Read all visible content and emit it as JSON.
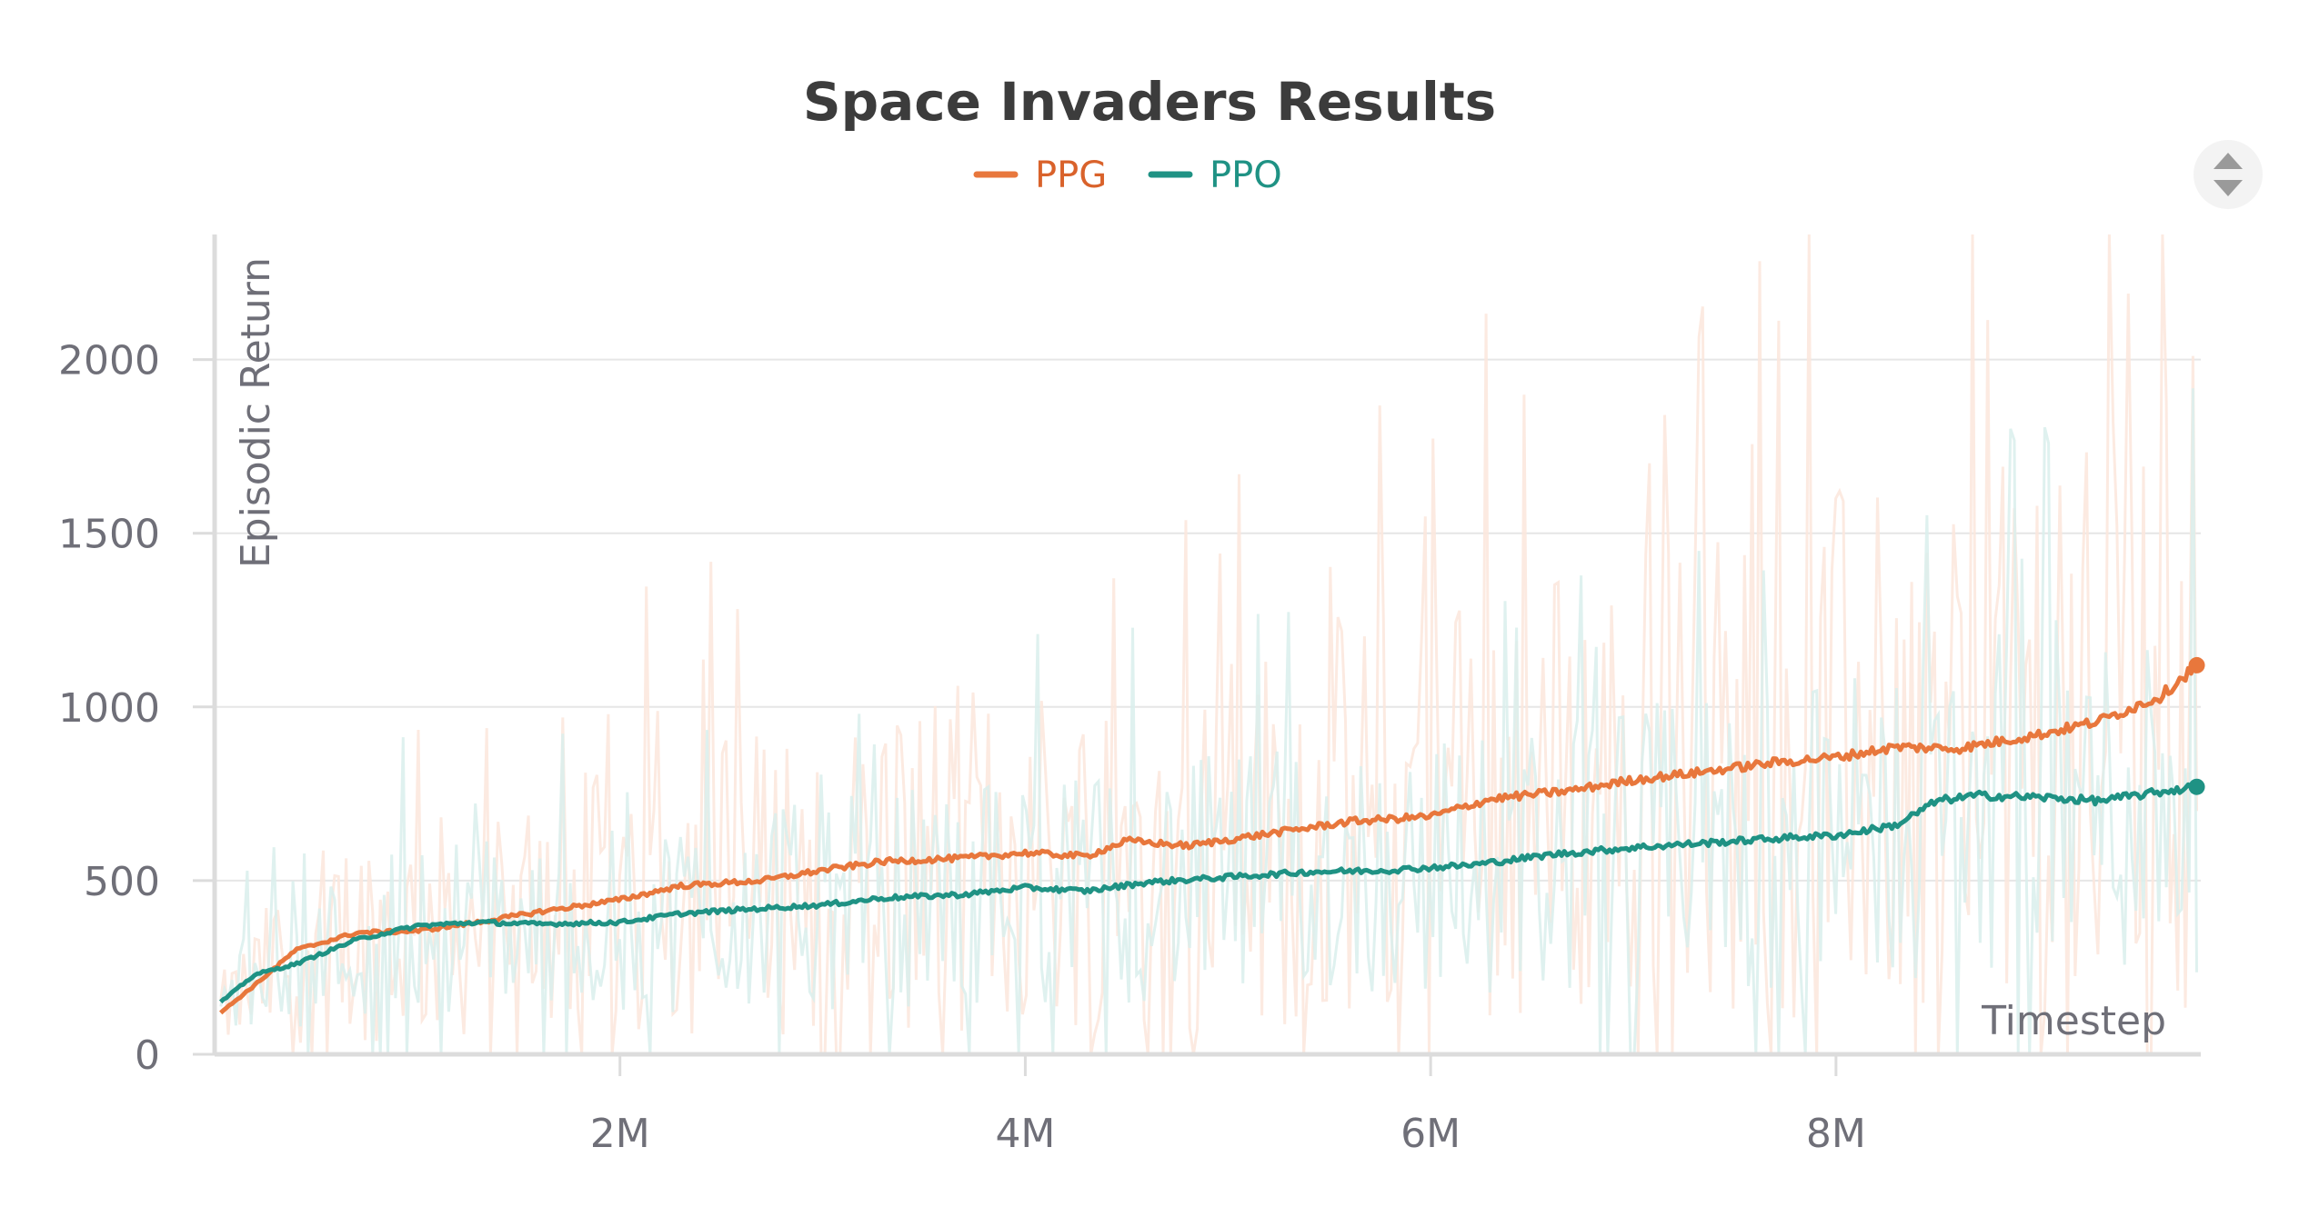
{
  "chart_data": {
    "type": "line",
    "title": "Space Invaders Results",
    "xlabel": "Timestep",
    "ylabel": "Episodic Return",
    "xlim": [
      0,
      9800000
    ],
    "ylim": [
      0,
      2360
    ],
    "xticks": [
      2000000,
      4000000,
      6000000,
      8000000
    ],
    "xtick_labels": [
      "2M",
      "4M",
      "6M",
      "8M"
    ],
    "yticks": [
      0,
      500,
      1000,
      1500,
      2000
    ],
    "ytick_labels": [
      "0",
      "500",
      "1000",
      "1500",
      "2000"
    ],
    "grid": true,
    "legend_position": "top-center",
    "series": [
      {
        "name": "PPG",
        "color": "#e8773c",
        "label_color": "#d9622b",
        "raw_color": "#fbe6dc",
        "x": [
          30000,
          200000,
          400000,
          700000,
          1000000,
          1300000,
          1600000,
          2000000,
          2300000,
          2700000,
          3000000,
          3300000,
          3700000,
          4000000,
          4300000,
          4500000,
          4800000,
          5200000,
          5600000,
          6000000,
          6300000,
          6700000,
          7000000,
          7300000,
          7700000,
          8000000,
          8300000,
          8600000,
          9000000,
          9300000,
          9600000,
          9780000
        ],
        "values": [
          120,
          200,
          300,
          350,
          355,
          380,
          410,
          445,
          485,
          500,
          530,
          555,
          565,
          580,
          570,
          615,
          600,
          635,
          670,
          685,
          735,
          760,
          790,
          810,
          840,
          855,
          885,
          880,
          920,
          960,
          1030,
          1120
        ]
      },
      {
        "name": "PPO",
        "color": "#1f9284",
        "label_color": "#1f9284",
        "raw_color": "#d9efec",
        "x": [
          30000,
          200000,
          400000,
          700000,
          1000000,
          1300000,
          1600000,
          2000000,
          2300000,
          2700000,
          3000000,
          3300000,
          3700000,
          4000000,
          4300000,
          4600000,
          5000000,
          5400000,
          5800000,
          6200000,
          6600000,
          7000000,
          7400000,
          7800000,
          8000000,
          8300000,
          8500000,
          8700000,
          9000000,
          9300000,
          9600000,
          9780000
        ],
        "values": [
          150,
          230,
          260,
          330,
          370,
          380,
          375,
          380,
          405,
          420,
          430,
          450,
          460,
          480,
          470,
          495,
          510,
          525,
          530,
          545,
          575,
          595,
          610,
          625,
          630,
          660,
          730,
          745,
          740,
          730,
          755,
          770
        ]
      }
    ]
  },
  "ui": {
    "scroll_arrows_label": ""
  }
}
